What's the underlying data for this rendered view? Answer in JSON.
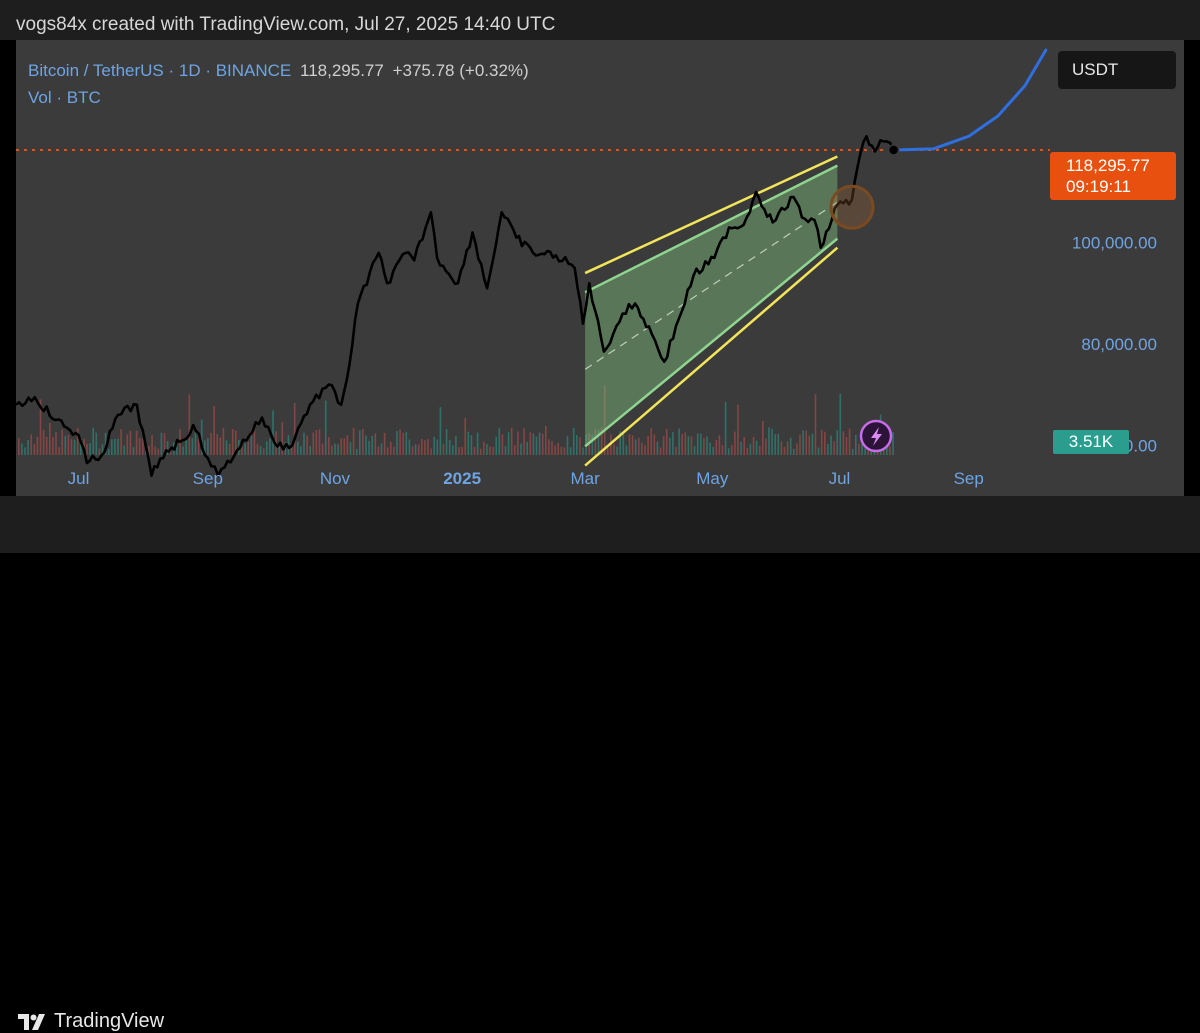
{
  "header": {
    "text": "vogs84x created with TradingView.com, Jul 27, 2025 14:40 UTC"
  },
  "legend": {
    "symbol": "Bitcoin / TetherUS · 1D · BINANCE",
    "price": "118,295.77",
    "change": "+375.78 (+0.32%)",
    "volume": "Vol · BTC"
  },
  "price_scale": {
    "currency": "USDT",
    "last_price_tag": "118,295.77",
    "countdown": "09:19:11"
  },
  "volume_tag": "3.51K",
  "footer": {
    "brand": "TradingView"
  },
  "colors": {
    "price_line": "#000000",
    "last_price_line": "#e8500f",
    "projection": "#2f6fe0",
    "channel_outer": "#f2e55a",
    "channel_inner": "#8fd58f",
    "channel_fill": "#7fbf7f",
    "volume_up": "#2a9d8f",
    "volume_down": "#c0504d"
  },
  "chart_data": {
    "type": "line",
    "symbol": "BTCUSDT",
    "interval": "1D",
    "exchange": "BINANCE",
    "x_tick_labels": [
      "Jul",
      "Sep",
      "Nov",
      "2025",
      "Mar",
      "May",
      "Jul",
      "Sep"
    ],
    "x_ticks": [
      "2024-07-01",
      "2024-09-01",
      "2024-11-01",
      "2025-01-01",
      "2025-03-01",
      "2025-05-01",
      "2025-07-01",
      "2025-09-01"
    ],
    "y_tick_labels": [
      "60,000.00",
      "80,000.00",
      "100,000.00"
    ],
    "y_ticks": [
      60000,
      80000,
      100000
    ],
    "ylim": [
      50000,
      140000
    ],
    "xlim": [
      "2024-06-01",
      "2025-10-10"
    ],
    "last_price": 118295.77,
    "series": [
      {
        "values": [
          [
            "2024-06-01",
            68000
          ],
          [
            "2024-06-10",
            69500
          ],
          [
            "2024-06-20",
            65000
          ],
          [
            "2024-07-01",
            62000
          ],
          [
            "2024-07-05",
            56500
          ],
          [
            "2024-07-12",
            58000
          ],
          [
            "2024-07-20",
            66000
          ],
          [
            "2024-07-29",
            68000
          ],
          [
            "2024-08-05",
            54000
          ],
          [
            "2024-08-12",
            59000
          ],
          [
            "2024-08-20",
            61000
          ],
          [
            "2024-08-25",
            64000
          ],
          [
            "2024-09-01",
            57500
          ],
          [
            "2024-09-06",
            54000
          ],
          [
            "2024-09-15",
            59000
          ],
          [
            "2024-09-27",
            65500
          ],
          [
            "2024-10-03",
            60500
          ],
          [
            "2024-10-10",
            59500
          ],
          [
            "2024-10-20",
            68000
          ],
          [
            "2024-10-29",
            72000
          ],
          [
            "2024-11-04",
            68000
          ],
          [
            "2024-11-08",
            76000
          ],
          [
            "2024-11-12",
            88000
          ],
          [
            "2024-11-22",
            98000
          ],
          [
            "2024-11-26",
            92000
          ],
          [
            "2024-12-05",
            98000
          ],
          [
            "2024-12-09",
            96500
          ],
          [
            "2024-12-17",
            106000
          ],
          [
            "2024-12-20",
            97000
          ],
          [
            "2024-12-30",
            92000
          ],
          [
            "2025-01-06",
            102000
          ],
          [
            "2025-01-13",
            91000
          ],
          [
            "2025-01-20",
            106000
          ],
          [
            "2025-01-27",
            101000
          ],
          [
            "2025-02-04",
            98000
          ],
          [
            "2025-02-15",
            97500
          ],
          [
            "2025-02-24",
            95000
          ],
          [
            "2025-02-28",
            84000
          ],
          [
            "2025-03-03",
            92000
          ],
          [
            "2025-03-10",
            78500
          ],
          [
            "2025-03-19",
            86000
          ],
          [
            "2025-03-25",
            88000
          ],
          [
            "2025-04-02",
            82000
          ],
          [
            "2025-04-08",
            76500
          ],
          [
            "2025-04-15",
            85000
          ],
          [
            "2025-04-22",
            93500
          ],
          [
            "2025-05-02",
            97000
          ],
          [
            "2025-05-09",
            103000
          ],
          [
            "2025-05-16",
            103500
          ],
          [
            "2025-05-22",
            110000
          ],
          [
            "2025-05-30",
            104000
          ],
          [
            "2025-06-09",
            109000
          ],
          [
            "2025-06-13",
            105000
          ],
          [
            "2025-06-19",
            104500
          ],
          [
            "2025-06-22",
            99000
          ],
          [
            "2025-06-30",
            107500
          ],
          [
            "2025-07-07",
            108500
          ],
          [
            "2025-07-11",
            117500
          ],
          [
            "2025-07-14",
            121000
          ],
          [
            "2025-07-18",
            118000
          ],
          [
            "2025-07-22",
            120000
          ],
          [
            "2025-07-27",
            118295.77
          ]
        ]
      },
      {
        "kind": "projection",
        "values": [
          [
            "2025-07-27",
            118295.77
          ],
          [
            "2025-08-15",
            118500
          ],
          [
            "2025-09-01",
            121000
          ],
          [
            "2025-09-15",
            125000
          ],
          [
            "2025-09-28",
            131000
          ],
          [
            "2025-10-08",
            138000
          ]
        ]
      }
    ],
    "annotations": [
      {
        "type": "parallel_channel",
        "start": "2025-03-01",
        "end": "2025-06-30",
        "upper": [
          94000,
          117000
        ],
        "lower": [
          56000,
          99000
        ]
      },
      {
        "type": "circle",
        "date": "2025-07-07",
        "price": 107000
      }
    ]
  }
}
